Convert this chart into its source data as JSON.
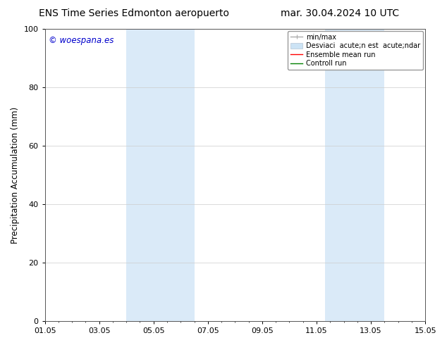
{
  "title_left": "ENS Time Series Edmonton aeropuerto",
  "title_right": "mar. 30.04.2024 10 UTC",
  "ylabel": "Precipitation Accumulation (mm)",
  "ylim": [
    0,
    100
  ],
  "yticks": [
    0,
    20,
    40,
    60,
    80,
    100
  ],
  "xtick_labels": [
    "01.05",
    "03.05",
    "05.05",
    "07.05",
    "09.05",
    "11.05",
    "13.05",
    "15.05"
  ],
  "xtick_positions": [
    0,
    2,
    4,
    6,
    8,
    10,
    12,
    14
  ],
  "xmin": 0,
  "xmax": 14,
  "shaded_regions": [
    {
      "x_start": 3.0,
      "x_end": 5.5,
      "color": "#daeaf8"
    },
    {
      "x_start": 10.3,
      "x_end": 12.5,
      "color": "#daeaf8"
    }
  ],
  "watermark_text": "© woespana.es",
  "watermark_color": "#0000cc",
  "background_color": "#ffffff",
  "grid_color": "#cccccc",
  "title_fontsize": 10,
  "axis_fontsize": 8.5,
  "tick_fontsize": 8,
  "legend_fontsize": 7,
  "legend_label_minmax": "min/max",
  "legend_label_std": "Desviaci  acute;n est  acute;ndar",
  "legend_label_ens": "Ensemble mean run",
  "legend_label_ctrl": "Controll run",
  "minmax_color": "#aaaaaa",
  "std_color": "#cce3f5",
  "ens_color": "red",
  "ctrl_color": "green"
}
